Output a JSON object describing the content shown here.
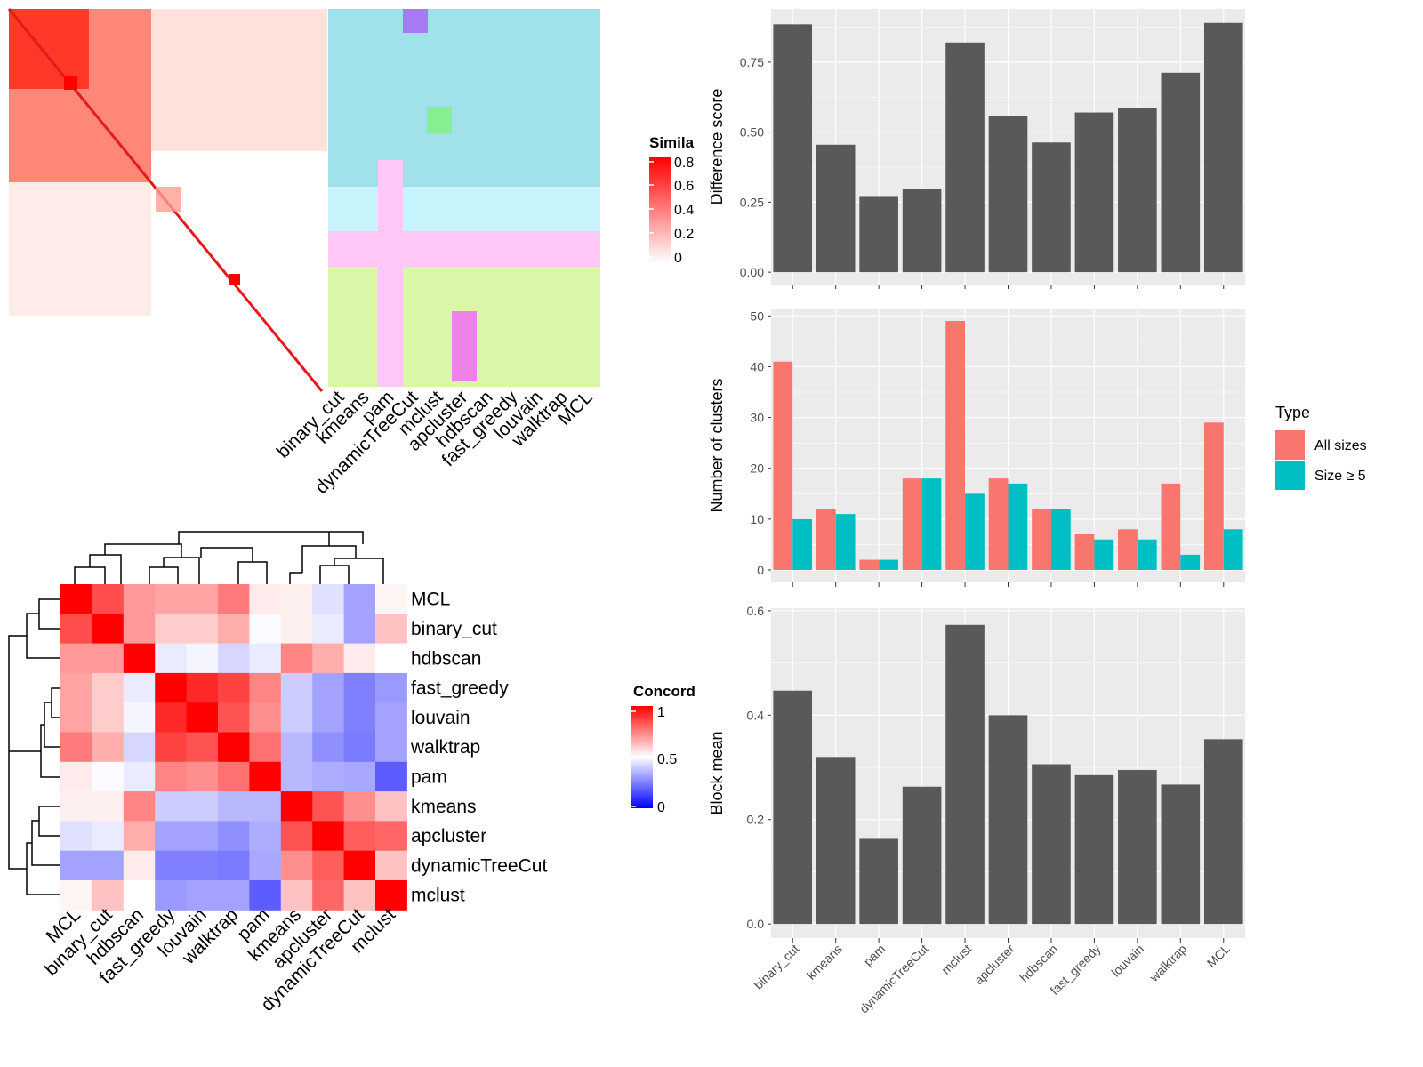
{
  "colors": {
    "panel_bg": "#EBEBEB",
    "grid": "#FFFFFF",
    "bar_dark": "#595959",
    "all_sizes": "#F8766D",
    "size_ge5": "#00BFC4",
    "heat_high": "#FF0000",
    "heat_mid": "#FFFFFF",
    "heat_low": "#0000FF"
  },
  "similarity_panel": {
    "legend_title": "Simila",
    "legend_ticks": [
      "0.8",
      "0.6",
      "0.4",
      "0.2",
      "0"
    ],
    "methods": [
      "binary_cut",
      "kmeans",
      "pam",
      "dynamicTreeCut",
      "mclust",
      "apcluster",
      "hdbscan",
      "fast_greedy",
      "louvain",
      "walktrap",
      "MCL"
    ]
  },
  "concordance_panel": {
    "legend_title": "Concord",
    "legend_ticks": [
      "1",
      "0.5",
      "0"
    ],
    "row_labels": [
      "MCL",
      "binary_cut",
      "hdbscan",
      "fast_greedy",
      "louvain",
      "walktrap",
      "pam",
      "kmeans",
      "apcluster",
      "dynamicTreeCut",
      "mclust"
    ],
    "col_labels": [
      "MCL",
      "binary_cut",
      "hdbscan",
      "fast_greedy",
      "louvain",
      "walktrap",
      "pam",
      "kmeans",
      "apcluster",
      "dynamicTreeCut",
      "mclust"
    ],
    "matrix": [
      [
        1.0,
        0.85,
        0.7,
        0.68,
        0.68,
        0.76,
        0.54,
        0.53,
        0.44,
        0.32,
        0.52
      ],
      [
        0.85,
        1.0,
        0.7,
        0.6,
        0.6,
        0.66,
        0.49,
        0.53,
        0.46,
        0.32,
        0.62
      ],
      [
        0.7,
        0.7,
        1.0,
        0.46,
        0.48,
        0.42,
        0.46,
        0.74,
        0.66,
        0.54,
        0.5
      ],
      [
        0.68,
        0.6,
        0.46,
        1.0,
        0.92,
        0.87,
        0.74,
        0.4,
        0.32,
        0.25,
        0.3
      ],
      [
        0.68,
        0.6,
        0.48,
        0.92,
        1.0,
        0.84,
        0.72,
        0.4,
        0.32,
        0.25,
        0.32
      ],
      [
        0.76,
        0.66,
        0.42,
        0.87,
        0.84,
        1.0,
        0.78,
        0.36,
        0.28,
        0.24,
        0.32
      ],
      [
        0.54,
        0.49,
        0.46,
        0.74,
        0.72,
        0.78,
        1.0,
        0.36,
        0.34,
        0.33,
        0.18
      ],
      [
        0.53,
        0.53,
        0.74,
        0.4,
        0.4,
        0.36,
        0.36,
        1.0,
        0.84,
        0.72,
        0.62
      ],
      [
        0.44,
        0.46,
        0.66,
        0.32,
        0.32,
        0.28,
        0.34,
        0.84,
        1.0,
        0.82,
        0.8
      ],
      [
        0.32,
        0.32,
        0.54,
        0.25,
        0.25,
        0.24,
        0.33,
        0.72,
        0.82,
        1.0,
        0.62
      ],
      [
        0.52,
        0.62,
        0.5,
        0.3,
        0.32,
        0.32,
        0.18,
        0.62,
        0.8,
        0.62,
        1.0
      ]
    ]
  },
  "chart_data": [
    {
      "type": "bar",
      "categories": [
        "binary_cut",
        "kmeans",
        "pam",
        "dynamicTreeCut",
        "mclust",
        "apcluster",
        "hdbscan",
        "fast_greedy",
        "louvain",
        "walktrap",
        "MCL"
      ],
      "values": [
        0.885,
        0.455,
        0.272,
        0.297,
        0.82,
        0.558,
        0.463,
        0.57,
        0.587,
        0.712,
        0.89
      ],
      "ylabel": "Difference score",
      "yticks": [
        "0.00",
        "0.25",
        "0.50",
        "0.75"
      ],
      "ylim": [
        -0.044,
        0.94
      ],
      "grid": true
    },
    {
      "type": "bar",
      "categories": [
        "binary_cut",
        "kmeans",
        "pam",
        "dynamicTreeCut",
        "mclust",
        "apcluster",
        "hdbscan",
        "fast_greedy",
        "louvain",
        "walktrap",
        "MCL"
      ],
      "series": [
        {
          "name": "All sizes",
          "values": [
            41,
            12,
            2,
            18,
            49,
            18,
            12,
            7,
            8,
            17,
            29
          ]
        },
        {
          "name": "Size ≥ 5",
          "values": [
            10,
            11,
            2,
            18,
            15,
            17,
            12,
            6,
            6,
            3,
            8
          ]
        }
      ],
      "ylabel": "Number of clusters",
      "yticks": [
        "0",
        "10",
        "20",
        "30",
        "40",
        "50"
      ],
      "ylim": [
        -2.45,
        51.45
      ],
      "legend_title": "Type",
      "legend_position": "right",
      "grid": true
    },
    {
      "type": "bar",
      "categories": [
        "binary_cut",
        "kmeans",
        "pam",
        "dynamicTreeCut",
        "mclust",
        "apcluster",
        "hdbscan",
        "fast_greedy",
        "louvain",
        "walktrap",
        "MCL"
      ],
      "values": [
        0.447,
        0.32,
        0.163,
        0.263,
        0.573,
        0.4,
        0.306,
        0.285,
        0.295,
        0.267,
        0.354
      ],
      "ylabel": "Block mean",
      "yticks": [
        "0.0",
        "0.2",
        "0.4",
        "0.6"
      ],
      "ylim": [
        -0.027,
        0.605
      ],
      "grid": true
    }
  ]
}
